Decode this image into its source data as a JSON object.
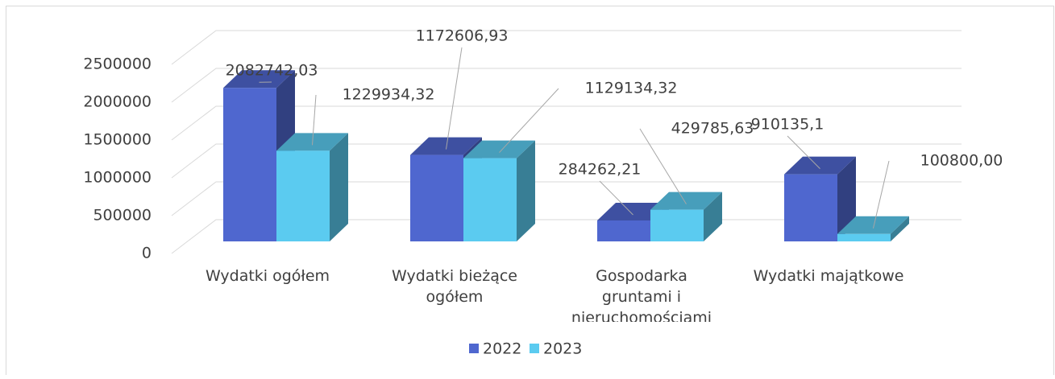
{
  "chart_data": {
    "type": "bar3d",
    "categories": [
      "Wydatki ogółem",
      "Wydatki bieżące ogółem",
      "Gospodarka gruntami i nieruchomościami",
      "Wydatki majątkowe"
    ],
    "series": [
      {
        "name": "2022",
        "color": "#4f67cf",
        "values": [
          2082742.03,
          1172606.93,
          284262.21,
          910135.1
        ],
        "value_labels": [
          "2082742,03",
          "1172606,93",
          "284262,21",
          "910135,1"
        ]
      },
      {
        "name": "2023",
        "color": "#5bcbf0",
        "values": [
          1229934.32,
          1129134.32,
          429785.63,
          100800.0
        ],
        "value_labels": [
          "1229934,32",
          "1129134,32",
          "429785,63",
          "100800,00"
        ]
      }
    ],
    "ylim": [
      0,
      2500000
    ],
    "yticks": [
      0,
      500000,
      1000000,
      1500000,
      2000000,
      2500000
    ],
    "grid": true,
    "legend": "bottom"
  }
}
